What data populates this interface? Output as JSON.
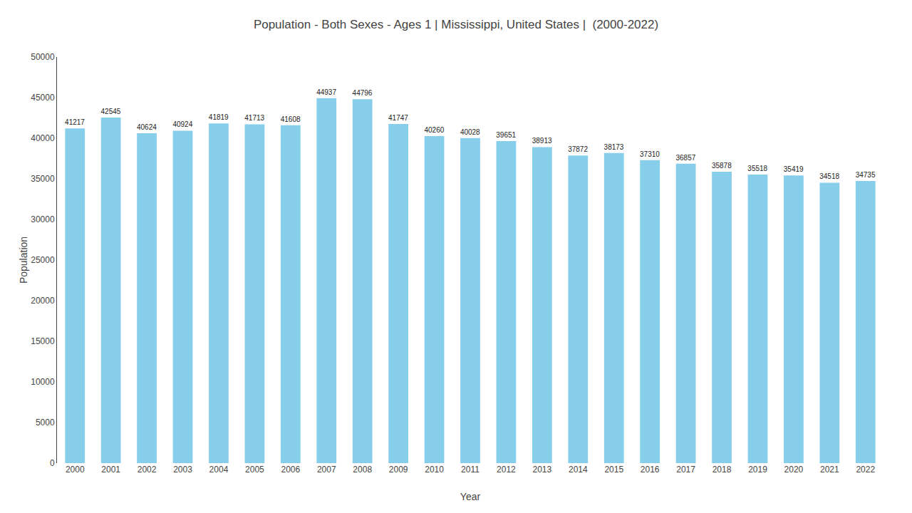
{
  "chart_data": {
    "type": "bar",
    "title": "Population - Both Sexes - Ages 1 | Mississippi, United States |  (2000-2022)",
    "xlabel": "Year",
    "ylabel": "Population",
    "categories": [
      "2000",
      "2001",
      "2002",
      "2003",
      "2004",
      "2005",
      "2006",
      "2007",
      "2008",
      "2009",
      "2010",
      "2011",
      "2012",
      "2013",
      "2014",
      "2015",
      "2016",
      "2017",
      "2018",
      "2019",
      "2020",
      "2021",
      "2022"
    ],
    "values": [
      41217,
      42545,
      40624,
      40924,
      41819,
      41713,
      41608,
      44937,
      44796,
      41747,
      40260,
      40028,
      39651,
      38913,
      37872,
      38173,
      37310,
      36857,
      35878,
      35518,
      35419,
      34518,
      34735
    ],
    "color": "#87CEEB",
    "ylim": [
      0,
      50000
    ],
    "yticks": [
      0,
      5000,
      10000,
      15000,
      20000,
      25000,
      30000,
      35000,
      40000,
      45000,
      50000
    ],
    "grid": false,
    "data_labels": true
  }
}
